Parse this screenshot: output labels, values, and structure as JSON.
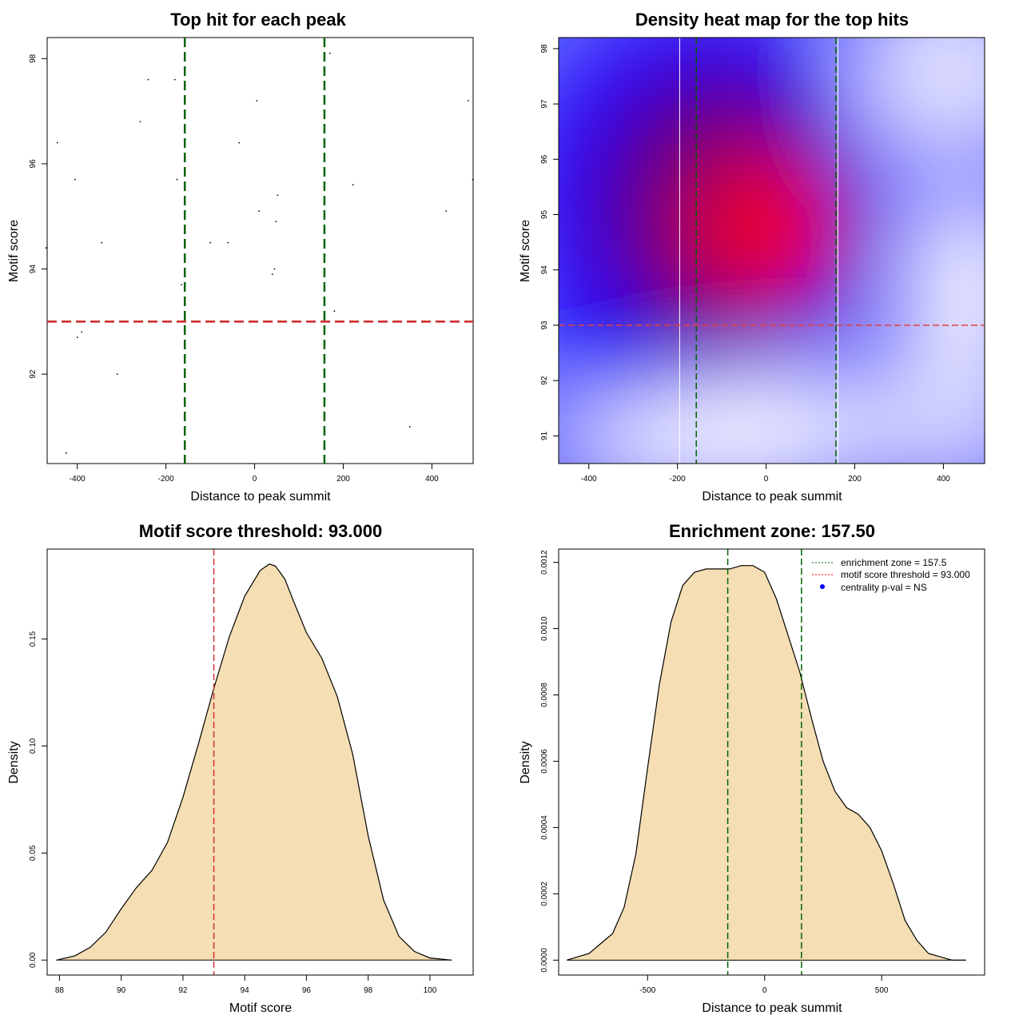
{
  "chart_data": [
    {
      "id": "scatter",
      "type": "scatter",
      "title": "Top hit for each peak",
      "xlabel": "Distance to peak summit",
      "ylabel": "Motif score",
      "xlim": [
        -468,
        493
      ],
      "ylim": [
        90.3,
        98.4
      ],
      "xticks": [
        "-400",
        "-200",
        "0",
        "200",
        "400"
      ],
      "yticks": [
        "92",
        "94",
        "96",
        "98"
      ],
      "points": [
        {
          "x": -470,
          "y": 94.4
        },
        {
          "x": -445,
          "y": 96.4
        },
        {
          "x": -425,
          "y": 90.5
        },
        {
          "x": -405,
          "y": 95.7
        },
        {
          "x": -400,
          "y": 92.7
        },
        {
          "x": -390,
          "y": 92.8
        },
        {
          "x": -345,
          "y": 94.5
        },
        {
          "x": -310,
          "y": 92.0
        },
        {
          "x": -258,
          "y": 96.8
        },
        {
          "x": -240,
          "y": 97.6
        },
        {
          "x": -180,
          "y": 97.6
        },
        {
          "x": -175,
          "y": 95.7
        },
        {
          "x": -165,
          "y": 93.7
        },
        {
          "x": -100,
          "y": 94.5
        },
        {
          "x": -60,
          "y": 94.5
        },
        {
          "x": -35,
          "y": 96.4
        },
        {
          "x": 5,
          "y": 97.2
        },
        {
          "x": 10,
          "y": 95.1
        },
        {
          "x": 40,
          "y": 93.9
        },
        {
          "x": 45,
          "y": 94.0
        },
        {
          "x": 48,
          "y": 94.9
        },
        {
          "x": 52,
          "y": 95.4
        },
        {
          "x": 158,
          "y": 93.6
        },
        {
          "x": 170,
          "y": 98.1
        },
        {
          "x": 180,
          "y": 93.2
        },
        {
          "x": 222,
          "y": 95.6
        },
        {
          "x": 350,
          "y": 91.0
        },
        {
          "x": 432,
          "y": 95.1
        },
        {
          "x": 482,
          "y": 97.2
        },
        {
          "x": 492,
          "y": 95.7
        }
      ],
      "hlines": [
        93
      ],
      "vlines": [
        -157.5,
        157.5
      ]
    },
    {
      "id": "heatmap",
      "type": "heatmap",
      "title": "Density heat map for the top hits",
      "xlabel": "Distance to peak summit",
      "ylabel": "Motif score",
      "xlim": [
        -468,
        493
      ],
      "ylim": [
        90.5,
        98.2
      ],
      "xticks": [
        "-400",
        "-200",
        "0",
        "200",
        "400"
      ],
      "yticks": [
        "91",
        "92",
        "93",
        "94",
        "95",
        "96",
        "97",
        "98"
      ],
      "density_peak": {
        "x": 0,
        "y": 94.7
      },
      "hlines": [
        93
      ],
      "vlines_green": [
        -157.5,
        157.5
      ],
      "vlines_white": [
        -195,
        162
      ]
    },
    {
      "id": "score-density",
      "type": "area",
      "title": "Motif score threshold: 93.000",
      "xlabel": "Motif score",
      "ylabel": "Density",
      "xlim": [
        87.6,
        101.4
      ],
      "ylim": [
        -0.007,
        0.192
      ],
      "xticks": [
        "88",
        "90",
        "92",
        "94",
        "96",
        "98",
        "100"
      ],
      "yticks": [
        "0.00",
        "0.05",
        "0.10",
        "0.15"
      ],
      "x": [
        87.9,
        88.5,
        89.0,
        89.5,
        90.0,
        90.5,
        91.0,
        91.5,
        92.0,
        92.5,
        93.0,
        93.5,
        94.0,
        94.5,
        94.8,
        95.0,
        95.3,
        95.6,
        96.0,
        96.5,
        97.0,
        97.5,
        98.0,
        98.5,
        99.0,
        99.5,
        100.0,
        100.7
      ],
      "y": [
        0.0,
        0.002,
        0.006,
        0.013,
        0.024,
        0.034,
        0.042,
        0.055,
        0.076,
        0.101,
        0.127,
        0.151,
        0.17,
        0.182,
        0.185,
        0.184,
        0.178,
        0.167,
        0.153,
        0.141,
        0.123,
        0.096,
        0.058,
        0.028,
        0.011,
        0.004,
        0.001,
        0.0
      ],
      "threshold": 93.0
    },
    {
      "id": "distance-density",
      "type": "area",
      "title": "Enrichment zone: 157.50",
      "xlabel": "Distance to peak summit",
      "ylabel": "Density",
      "xlim": [
        -880,
        940
      ],
      "ylim": [
        -4.5e-05,
        0.00124
      ],
      "xticks": [
        "-500",
        "0",
        "500"
      ],
      "yticks": [
        "0.0000",
        "0.0002",
        "0.0004",
        "0.0006",
        "0.0008",
        "0.0010",
        "0.0012"
      ],
      "x": [
        -845,
        -750,
        -650,
        -600,
        -550,
        -500,
        -450,
        -400,
        -350,
        -300,
        -250,
        -200,
        -150,
        -100,
        -50,
        0,
        50,
        100,
        150,
        200,
        250,
        300,
        350,
        400,
        450,
        500,
        550,
        600,
        650,
        700,
        750,
        800,
        860
      ],
      "y": [
        0.0,
        2e-05,
        8e-05,
        0.00016,
        0.00032,
        0.00058,
        0.00083,
        0.00102,
        0.00113,
        0.00117,
        0.00118,
        0.00118,
        0.00118,
        0.00119,
        0.00119,
        0.00117,
        0.00109,
        0.00098,
        0.00087,
        0.00073,
        0.0006,
        0.00051,
        0.00046,
        0.00044,
        0.0004,
        0.00033,
        0.00023,
        0.00012,
        6e-05,
        2e-05,
        1e-05,
        0.0,
        0.0
      ],
      "vlines": [
        -157.5,
        157.5
      ],
      "legend": [
        {
          "label": "enrichment zone = 157.5",
          "style": "dotted",
          "color": "#006400"
        },
        {
          "label": "motif score threshold = 93.000",
          "style": "dotted",
          "color": "#FF0000"
        },
        {
          "label": "centrality p-val = NS",
          "style": "point",
          "color": "#0000FF"
        }
      ]
    }
  ],
  "colors": {
    "green_line": "#006400",
    "red_line": "#CD2626",
    "fill": "#F5DEB3",
    "heat_low": "#FFFFFF",
    "heat_mid": "#0000FF",
    "heat_high": "#FF0000"
  }
}
